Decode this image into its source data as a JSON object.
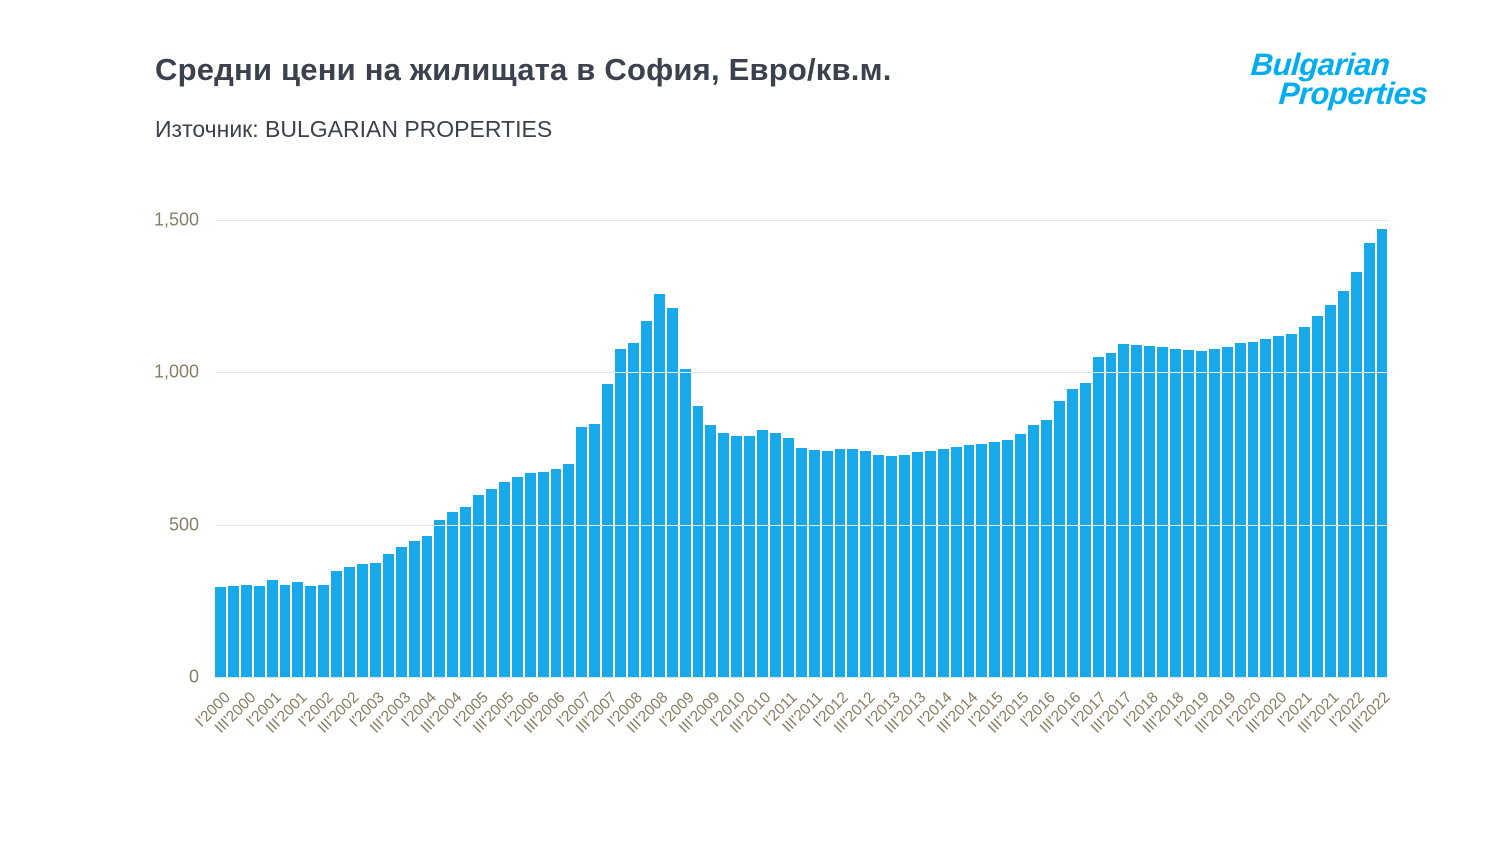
{
  "header": {
    "title": "Средни цени на жилищата в София, Евро/кв.м.",
    "source": "Източник: BULGARIAN PROPERTIES",
    "logo_line1": "Bulgarian",
    "logo_line2": "Properties",
    "logo_color": "#00aeef"
  },
  "chart_data": {
    "type": "bar",
    "title": "Средни цени на жилищата в София, Евро/кв.м.",
    "subtitle": "Източник: BULGARIAN PROPERTIES",
    "xlabel": "",
    "ylabel": "",
    "ylim": [
      0,
      1500
    ],
    "grid": true,
    "legend": "none",
    "bar_color": "#17a9ea",
    "x_label_every_nth": 2,
    "yticks": [
      {
        "value": 0,
        "label": "0"
      },
      {
        "value": 500,
        "label": "500"
      },
      {
        "value": 1000,
        "label": "1,000"
      },
      {
        "value": 1500,
        "label": "1,500"
      }
    ],
    "categories": [
      "I'2000",
      "II'2000",
      "III'2000",
      "IV'2000",
      "I'2001",
      "II'2001",
      "III'2001",
      "IV'2001",
      "I'2002",
      "II'2002",
      "III'2002",
      "IV'2002",
      "I'2003",
      "II'2003",
      "III'2003",
      "IV'2003",
      "I'2004",
      "II'2004",
      "III'2004",
      "IV'2004",
      "I'2005",
      "II'2005",
      "III'2005",
      "IV'2005",
      "I'2006",
      "II'2006",
      "III'2006",
      "IV'2006",
      "I'2007",
      "II'2007",
      "III'2007",
      "IV'2007",
      "I'2008",
      "II'2008",
      "III'2008",
      "IV'2008",
      "I'2009",
      "II'2009",
      "III'2009",
      "IV'2009",
      "I'2010",
      "II'2010",
      "III'2010",
      "IV'2010",
      "I'2011",
      "II'2011",
      "III'2011",
      "IV'2011",
      "I'2012",
      "II'2012",
      "III'2012",
      "IV'2012",
      "I'2013",
      "II'2013",
      "III'2013",
      "IV'2013",
      "I'2014",
      "II'2014",
      "III'2014",
      "IV'2014",
      "I'2015",
      "II'2015",
      "III'2015",
      "IV'2015",
      "I'2016",
      "II'2016",
      "III'2016",
      "IV'2016",
      "I'2017",
      "II'2017",
      "III'2017",
      "IV'2017",
      "I'2018",
      "II'2018",
      "III'2018",
      "IV'2018",
      "I'2019",
      "II'2019",
      "III'2019",
      "IV'2019",
      "I'2020",
      "II'2020",
      "III'2020",
      "IV'2020",
      "I'2021",
      "II'2021",
      "III'2021",
      "IV'2021",
      "I'2022",
      "II'2022",
      "III'2022"
    ],
    "values": [
      295,
      298,
      302,
      298,
      318,
      303,
      312,
      300,
      302,
      348,
      360,
      372,
      375,
      405,
      428,
      448,
      462,
      515,
      540,
      558,
      598,
      618,
      640,
      658,
      668,
      672,
      682,
      700,
      820,
      832,
      962,
      1075,
      1095,
      1168,
      1258,
      1210,
      1010,
      890,
      828,
      800,
      790,
      792,
      812,
      800,
      785,
      752,
      745,
      742,
      750,
      748,
      742,
      730,
      725,
      730,
      738,
      742,
      748,
      755,
      762,
      765,
      770,
      778,
      798,
      828,
      845,
      905,
      945,
      965,
      1052,
      1062,
      1092,
      1090,
      1085,
      1082,
      1078,
      1072,
      1070,
      1075,
      1082,
      1095,
      1100,
      1108,
      1118,
      1125,
      1150,
      1185,
      1222,
      1268,
      1330,
      1425,
      1470
    ]
  }
}
